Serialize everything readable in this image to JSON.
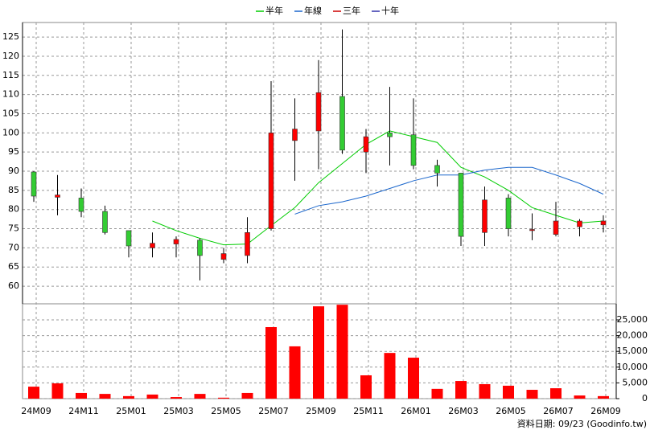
{
  "chart_data": [
    {
      "type": "candlestick",
      "categories": [
        "24M09",
        null,
        "24M11",
        null,
        "25M01",
        null,
        "25M03",
        null,
        "25M05",
        null,
        "25M07",
        null,
        "25M09",
        null,
        "25M11",
        null,
        "26M01",
        null,
        "26M03",
        null,
        "26M05",
        null,
        "26M07",
        null,
        "26M09"
      ],
      "open": [
        89.8,
        83.2,
        83,
        79.5,
        74.5,
        70,
        71,
        72,
        67,
        68,
        75,
        98,
        100.5,
        109.5,
        95,
        100,
        99.5,
        91.5,
        89.5,
        74,
        83,
        74.5,
        73.5,
        75.5,
        76
      ],
      "high": [
        90,
        89,
        85.5,
        81,
        74.5,
        74,
        73,
        72.5,
        70,
        78,
        113.5,
        109,
        119,
        127,
        101,
        112,
        109,
        93,
        89.5,
        86,
        84,
        79,
        82,
        77.5,
        78.5
      ],
      "low": [
        82,
        78.5,
        78,
        73.5,
        67.5,
        67.5,
        67.5,
        61.5,
        66,
        66,
        74.5,
        87.5,
        90.5,
        94.5,
        89.5,
        91.5,
        90.5,
        86,
        70.5,
        70.5,
        73,
        72,
        73,
        73,
        74
      ],
      "close": [
        83.5,
        83.8,
        79.5,
        74,
        70.5,
        71.2,
        72.2,
        68,
        68.5,
        74,
        100,
        101,
        110.5,
        95.5,
        99,
        99,
        91.5,
        89.5,
        73,
        82.5,
        75,
        74.8,
        77,
        77,
        77
      ],
      "up_color": "#ff0000",
      "down_color": "#33cc33",
      "series": [
        {
          "name": "半年",
          "color": "#00cc00",
          "values": [
            null,
            null,
            null,
            null,
            null,
            77,
            74.5,
            72.5,
            70.8,
            71,
            75.8,
            80.5,
            87,
            92,
            97,
            100.5,
            99,
            97.5,
            91,
            88.5,
            85,
            80.5,
            78.5,
            76.5,
            77
          ]
        },
        {
          "name": "年線",
          "color": "#1a66cc",
          "values": [
            null,
            null,
            null,
            null,
            null,
            null,
            null,
            null,
            null,
            null,
            null,
            78.8,
            81,
            82,
            83.5,
            85.5,
            87.5,
            89,
            89,
            90.3,
            91,
            91,
            89,
            86.8,
            84
          ]
        },
        {
          "name": "三年",
          "color": "#cc0000",
          "values": [
            null,
            null,
            null,
            null,
            null,
            null,
            null,
            null,
            null,
            null,
            null,
            null,
            null,
            null,
            null,
            null,
            null,
            null,
            null,
            null,
            null,
            null,
            null,
            null,
            null
          ]
        },
        {
          "name": "十年",
          "color": "#3333aa",
          "values": [
            null,
            null,
            null,
            null,
            null,
            null,
            null,
            null,
            null,
            null,
            null,
            null,
            null,
            null,
            null,
            null,
            null,
            null,
            null,
            null,
            null,
            null,
            null,
            null,
            null
          ]
        }
      ],
      "ylim": [
        55.4,
        128.8
      ],
      "yticks": [
        60,
        65,
        70,
        75,
        80,
        85,
        90,
        95,
        100,
        105,
        110,
        115,
        120,
        125
      ],
      "grid": true
    },
    {
      "type": "bar",
      "values": [
        3800,
        4850,
        1800,
        1500,
        800,
        1300,
        500,
        1500,
        300,
        1800,
        22700,
        16600,
        29300,
        29800,
        7400,
        14500,
        13000,
        3100,
        5600,
        4600,
        4100,
        2800,
        3300,
        1000,
        800
      ],
      "color": "#ff0000",
      "ylim": [
        0,
        30100
      ],
      "yticks": [
        0,
        {
          "value": 5000,
          "label": "5,000"
        },
        {
          "value": 10000,
          "label": "10,000"
        },
        {
          "value": 15000,
          "label": "15,000"
        },
        {
          "value": 20000,
          "label": "20,000"
        },
        {
          "value": 25000,
          "label": "25,000"
        }
      ],
      "grid": true
    }
  ],
  "footer": "資料日期: 09/23  (Goodinfo.tw)"
}
